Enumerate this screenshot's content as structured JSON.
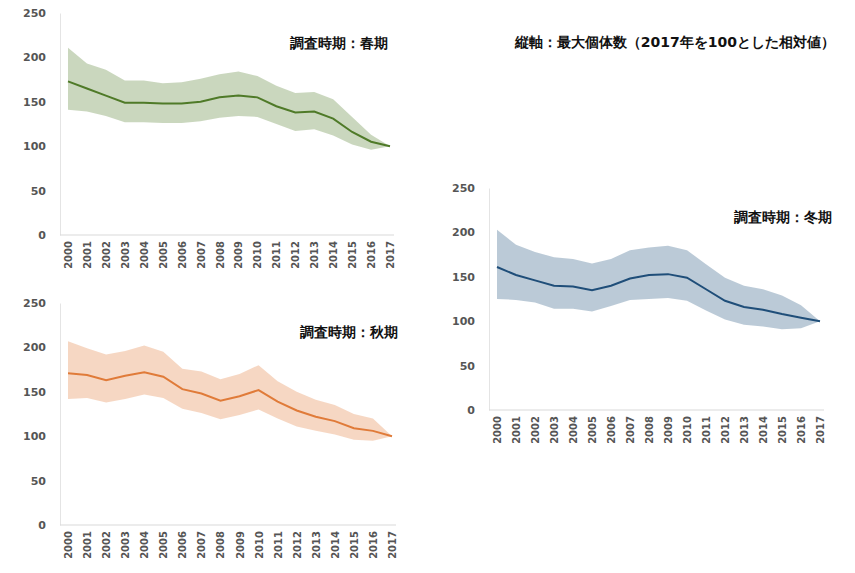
{
  "header": {
    "text": "縦軸：最大個体数（2017年を100とした相対値）"
  },
  "chart_data": [
    {
      "type": "line",
      "title": "調査時期：春期",
      "categories": [
        "2000",
        "2001",
        "2002",
        "2003",
        "2004",
        "2005",
        "2006",
        "2007",
        "2008",
        "2009",
        "2010",
        "2011",
        "2012",
        "2013",
        "2014",
        "2015",
        "2016",
        "2017"
      ],
      "series": [
        {
          "color": "#4f7a28",
          "values": [
            173,
            165,
            157,
            149,
            149,
            148,
            148,
            150,
            155,
            157,
            155,
            145,
            138,
            139,
            131,
            116,
            105,
            100
          ],
          "lower": [
            141,
            139,
            134,
            127,
            127,
            126,
            126,
            128,
            132,
            134,
            133,
            125,
            117,
            119,
            112,
            102,
            96,
            100
          ],
          "upper": [
            211,
            193,
            186,
            174,
            174,
            171,
            172,
            176,
            181,
            184,
            179,
            168,
            160,
            161,
            153,
            133,
            113,
            100
          ]
        }
      ],
      "ylim": [
        0,
        250
      ],
      "yticks": [
        0,
        50,
        100,
        150,
        200,
        250
      ],
      "grid": false
    },
    {
      "type": "line",
      "title": "調査時期：秋期",
      "categories": [
        "2000",
        "2001",
        "2002",
        "2003",
        "2004",
        "2005",
        "2006",
        "2007",
        "2008",
        "2009",
        "2010",
        "2011",
        "2012",
        "2013",
        "2014",
        "2015",
        "2016",
        "2017"
      ],
      "series": [
        {
          "color": "#e07b39",
          "values": [
            171,
            169,
            163,
            168,
            172,
            167,
            153,
            148,
            140,
            145,
            152,
            139,
            129,
            122,
            117,
            109,
            106,
            100
          ],
          "lower": [
            142,
            143,
            138,
            142,
            147,
            143,
            131,
            126,
            119,
            124,
            130,
            120,
            111,
            106,
            102,
            96,
            95,
            100
          ],
          "upper": [
            207,
            199,
            192,
            196,
            202,
            195,
            176,
            173,
            164,
            170,
            180,
            162,
            150,
            141,
            135,
            125,
            120,
            100
          ]
        }
      ],
      "ylim": [
        0,
        250
      ],
      "yticks": [
        0,
        50,
        100,
        150,
        200,
        250
      ],
      "grid": false
    },
    {
      "type": "line",
      "title": "調査時期：冬期",
      "categories": [
        "2000",
        "2001",
        "2002",
        "2003",
        "2004",
        "2005",
        "2006",
        "2007",
        "2008",
        "2009",
        "2010",
        "2011",
        "2012",
        "2013",
        "2014",
        "2015",
        "2016",
        "2017"
      ],
      "series": [
        {
          "color": "#1f4e79",
          "values": [
            161,
            152,
            146,
            140,
            139,
            135,
            140,
            148,
            152,
            153,
            149,
            136,
            123,
            116,
            113,
            108,
            104,
            100
          ],
          "lower": [
            125,
            124,
            121,
            114,
            114,
            111,
            117,
            124,
            125,
            126,
            123,
            112,
            102,
            96,
            94,
            91,
            92,
            100
          ],
          "upper": [
            203,
            186,
            178,
            172,
            170,
            165,
            170,
            180,
            183,
            185,
            180,
            164,
            149,
            140,
            136,
            129,
            118,
            100
          ]
        }
      ],
      "ylim": [
        0,
        250
      ],
      "yticks": [
        0,
        50,
        100,
        150,
        200,
        250
      ],
      "grid": false
    }
  ]
}
